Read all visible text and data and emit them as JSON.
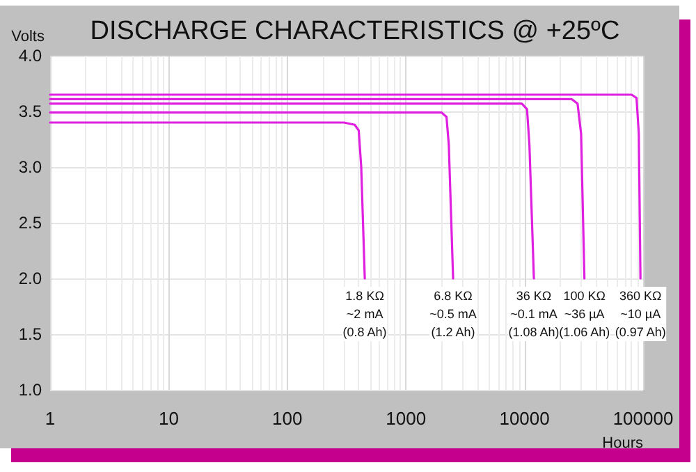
{
  "chart_data": {
    "type": "line",
    "title": "DISCHARGE CHARACTERISTICS @ +25ºC",
    "xlabel": "Hours",
    "ylabel": "Volts",
    "log": "x",
    "grid": true,
    "marker": "none",
    "line_style": "solid",
    "xlim": [
      1,
      100000
    ],
    "xticks": [
      1,
      10,
      100,
      1000,
      10000,
      100000
    ],
    "ylim": [
      1,
      4
    ],
    "yticks": [
      {
        "value": 1,
        "label": "1.0"
      },
      {
        "value": 1.5,
        "label": "1.5"
      },
      {
        "value": 2,
        "label": "2.0"
      },
      {
        "value": 2.5,
        "label": "2.5"
      },
      {
        "value": 3,
        "label": "3.0"
      },
      {
        "value": 3.5,
        "label": "3.5"
      },
      {
        "value": 4,
        "label": "4.0"
      }
    ],
    "series": [
      {
        "color": "#e020e0",
        "x": [
          1,
          300,
          370,
          400,
          420,
          450
        ],
        "values": [
          3.4,
          3.4,
          3.38,
          3.33,
          3.0,
          2.0
        ]
      },
      {
        "color": "#e020e0",
        "x": [
          1,
          2000,
          2200,
          2300,
          2500
        ],
        "values": [
          3.49,
          3.49,
          3.45,
          3.2,
          2.0
        ]
      },
      {
        "color": "#e020e0",
        "x": [
          1,
          9500,
          10500,
          11000,
          12000
        ],
        "values": [
          3.57,
          3.57,
          3.52,
          3.2,
          2.0
        ]
      },
      {
        "color": "#e020e0",
        "x": [
          1,
          25000,
          28000,
          30000,
          32000
        ],
        "values": [
          3.61,
          3.61,
          3.57,
          3.3,
          2.0
        ]
      },
      {
        "color": "#e020e0",
        "x": [
          1,
          80000,
          88000,
          92000,
          95000
        ],
        "values": [
          3.65,
          3.65,
          3.62,
          3.3,
          2.0
        ]
      }
    ],
    "annotations": [
      {
        "text": "1.8 KΩ\n~2 mA\n(0.8 Ah)",
        "x": 450,
        "y": 2.0
      },
      {
        "text": "6.8 KΩ\n~0.5 mA\n(1.2 Ah)",
        "x": 2500,
        "y": 2.0
      },
      {
        "text": "36 KΩ\n~0.1 mA\n(1.08 Ah)",
        "x": 12000,
        "y": 2.0
      },
      {
        "text": "100 KΩ\n~36 µA\n(1.06 Ah)",
        "x": 32000,
        "y": 2.0
      },
      {
        "text": "360 KΩ\n~10 µA\n(0.97 Ah)",
        "x": 95000,
        "y": 2.0
      }
    ]
  }
}
